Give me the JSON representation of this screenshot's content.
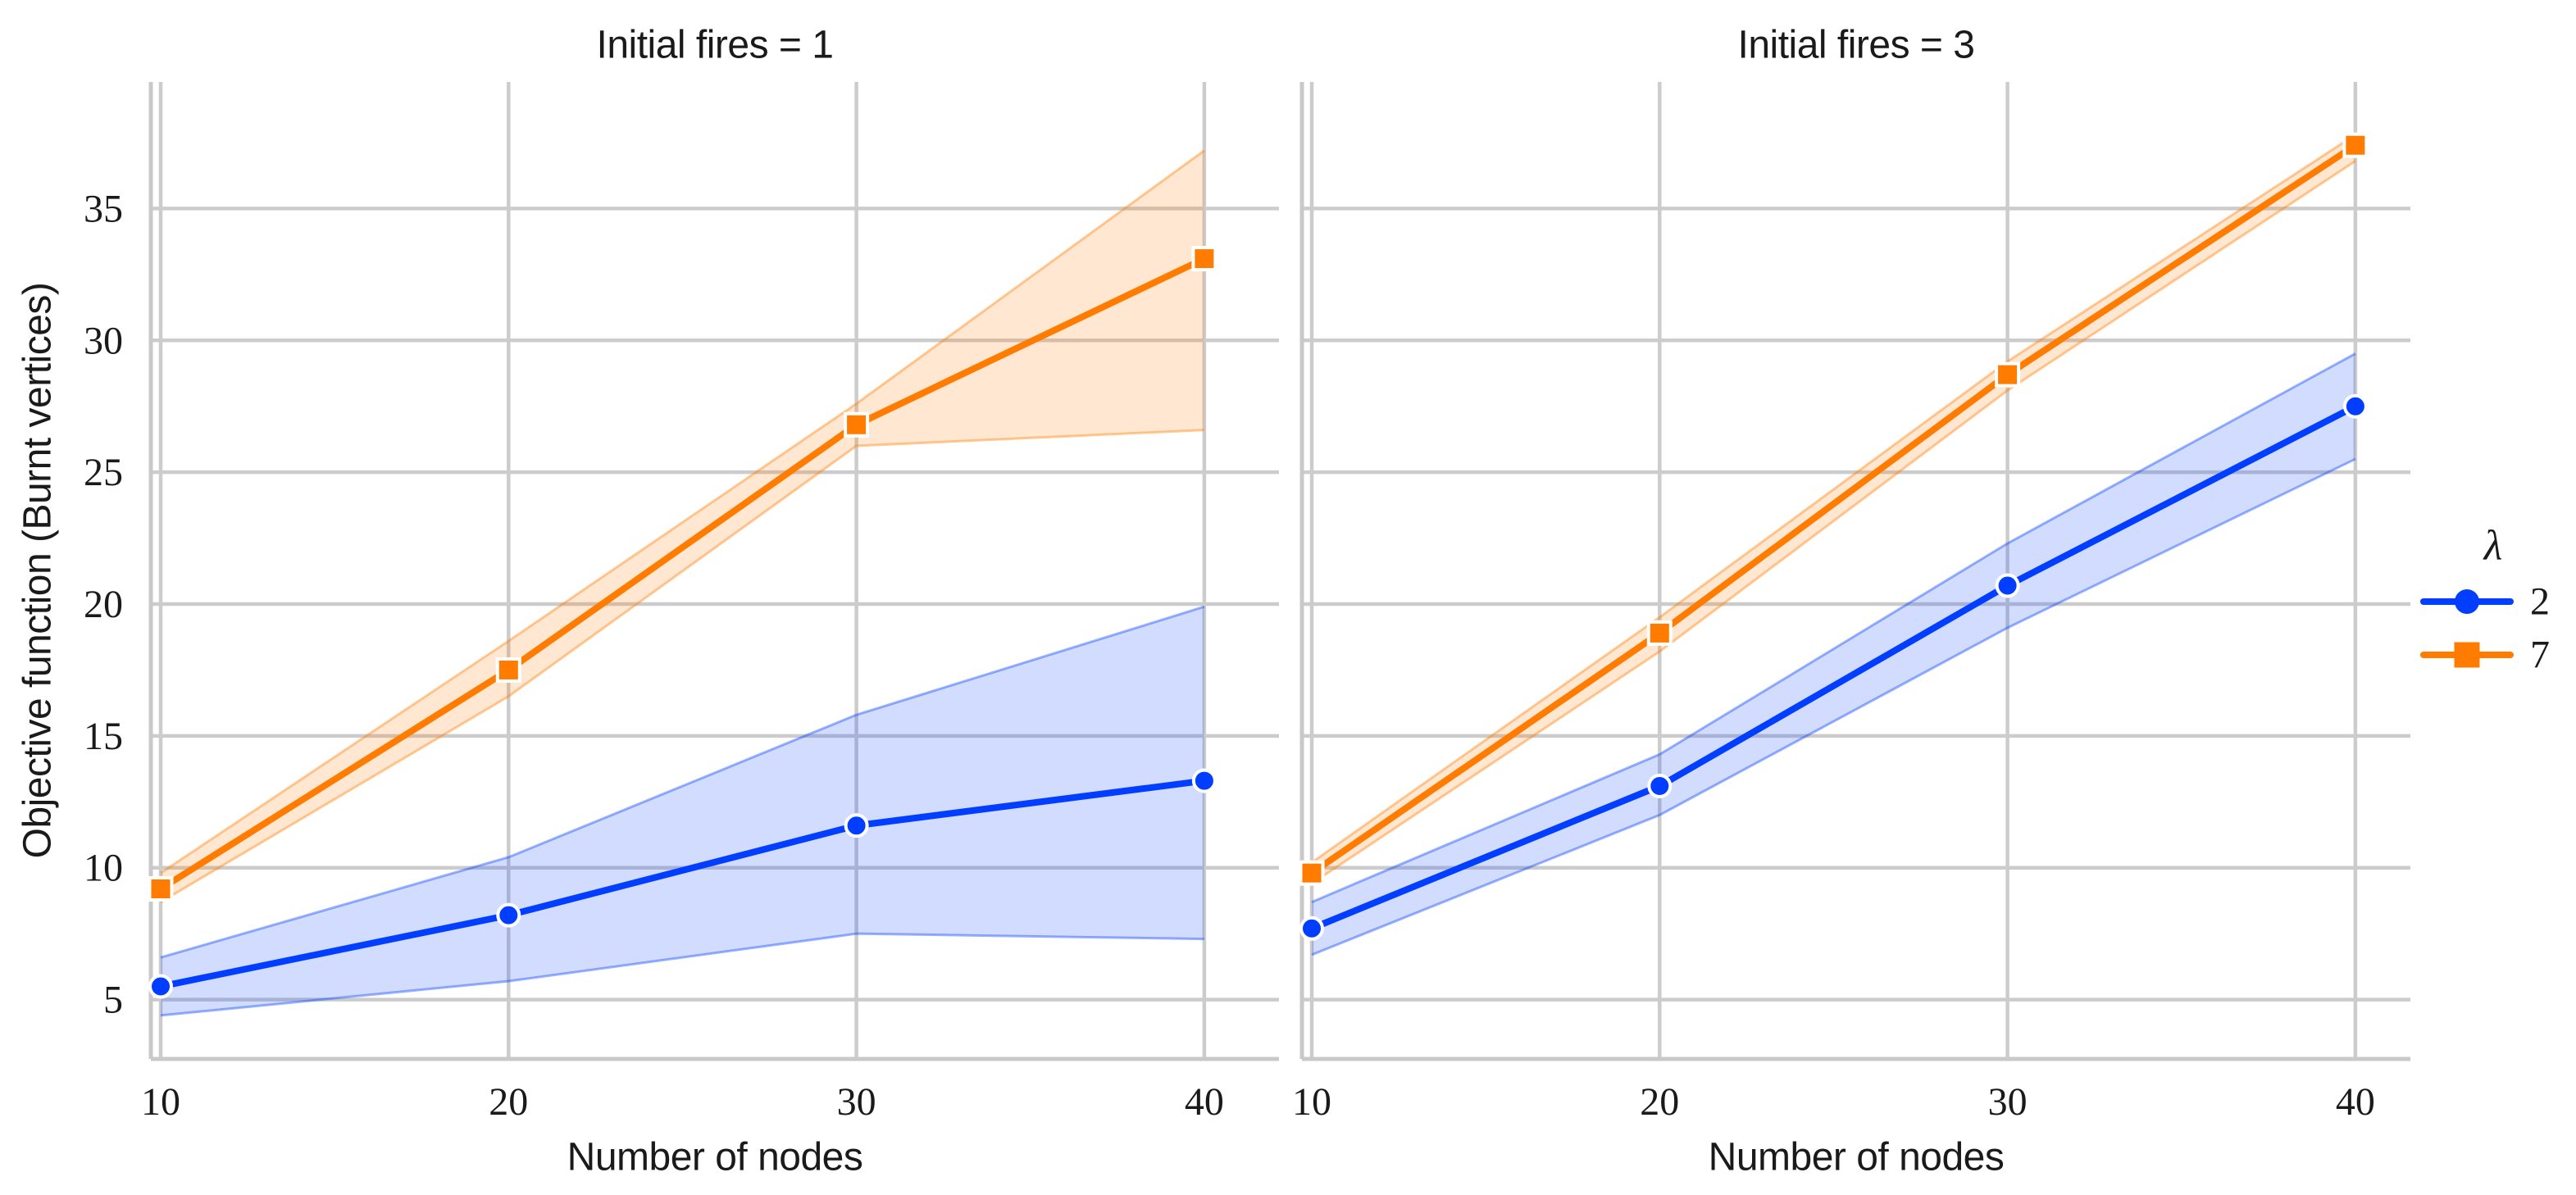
{
  "page": {
    "background": "#ffffff"
  },
  "chart_data": {
    "type": "line",
    "xlabel": "Number of nodes",
    "ylabel": "Objective function (Burnt vertices)",
    "x": [
      10,
      20,
      30,
      40
    ],
    "x_tick_labels": [
      "10",
      "20",
      "30",
      "40"
    ],
    "y_ticks": [
      5,
      10,
      15,
      20,
      25,
      30,
      35
    ],
    "y_tick_labels": [
      "5",
      "10",
      "15",
      "20",
      "25",
      "30",
      "35"
    ],
    "xlim": [
      9.7,
      41.6
    ],
    "ylim": [
      2.75,
      39.8
    ],
    "grid": true,
    "legend": {
      "title": "λ",
      "position": "right",
      "entries": [
        {
          "label": "2",
          "color": "#023EFF",
          "marker": "circle"
        },
        {
          "label": "7",
          "color": "#FF7C00",
          "marker": "square"
        }
      ]
    },
    "facets": [
      {
        "title": "Initial fires = 1",
        "series": [
          {
            "name": "λ = 2",
            "color": "#023EFF",
            "marker": "circle",
            "values": [
              5.5,
              8.2,
              11.6,
              13.3
            ],
            "band_low": [
              4.4,
              5.7,
              7.5,
              7.3
            ],
            "band_high": [
              6.6,
              10.4,
              15.8,
              19.9
            ]
          },
          {
            "name": "λ = 7",
            "color": "#FF7C00",
            "marker": "square",
            "values": [
              9.2,
              17.5,
              26.8,
              33.1
            ],
            "band_low": [
              8.7,
              16.5,
              26.0,
              26.6
            ],
            "band_high": [
              9.8,
              18.6,
              27.6,
              37.2
            ]
          }
        ]
      },
      {
        "title": "Initial fires = 3",
        "series": [
          {
            "name": "λ = 2",
            "color": "#023EFF",
            "marker": "circle",
            "values": [
              7.7,
              13.1,
              20.7,
              27.5
            ],
            "band_low": [
              6.7,
              12.0,
              19.1,
              25.5
            ],
            "band_high": [
              8.7,
              14.3,
              22.3,
              29.5
            ]
          },
          {
            "name": "λ = 7",
            "color": "#FF7C00",
            "marker": "square",
            "values": [
              9.8,
              18.9,
              28.7,
              37.4
            ],
            "band_low": [
              9.4,
              18.2,
              28.1,
              36.8
            ],
            "band_high": [
              10.2,
              19.5,
              29.2,
              37.8
            ]
          }
        ]
      }
    ]
  }
}
